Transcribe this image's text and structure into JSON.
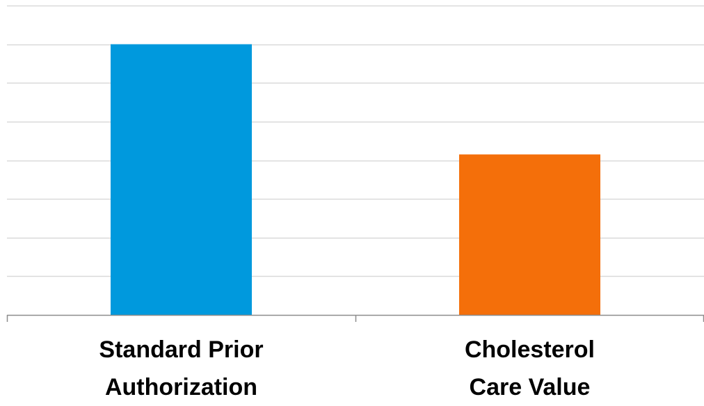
{
  "chart_data": {
    "type": "bar",
    "categories": [
      "Standard Prior Authorization",
      "Cholesterol Care Value"
    ],
    "category_label_lines": [
      [
        "Standard Prior",
        "Authorization"
      ],
      [
        "Cholesterol",
        "Care Value"
      ]
    ],
    "values": [
      7,
      4.15
    ],
    "ylim": [
      0,
      8
    ],
    "ytick_step": 1,
    "show_ytick_labels": false,
    "grid": true,
    "legend": "none",
    "title": "",
    "xlabel": "",
    "ylabel": ""
  },
  "colors": {
    "bars": [
      "#0099dd",
      "#f46f0a"
    ],
    "grid": "#d9d9d9",
    "axis": "#8c8c8c"
  }
}
